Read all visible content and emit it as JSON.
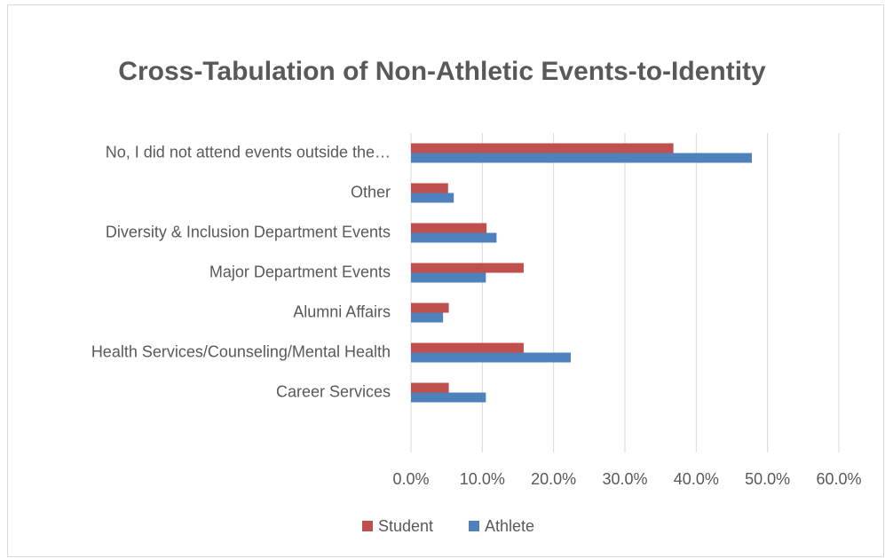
{
  "chart_data": {
    "type": "bar",
    "orientation": "horizontal",
    "title": "Cross-Tabulation of Non-Athletic Events-to-Identity",
    "categories": [
      "No, I did not attend events outside the…",
      "Other",
      "Diversity & Inclusion Department Events",
      "Major Department Events",
      "Alumni Affairs",
      "Health Services/Counseling/Mental Health",
      "Career Services"
    ],
    "series": [
      {
        "name": "Student",
        "color": "#c0504d",
        "values": [
          36.8,
          5.2,
          10.6,
          15.8,
          5.3,
          15.8,
          5.3
        ]
      },
      {
        "name": "Athlete",
        "color": "#4f81bd",
        "values": [
          47.8,
          6.0,
          12.0,
          10.5,
          4.5,
          22.4,
          10.5
        ]
      }
    ],
    "xlim": [
      0,
      60
    ],
    "xticks": [
      {
        "value": 0,
        "label": "0.0%"
      },
      {
        "value": 10,
        "label": "10.0%"
      },
      {
        "value": 20,
        "label": "20.0%"
      },
      {
        "value": 30,
        "label": "30.0%"
      },
      {
        "value": 40,
        "label": "40.0%"
      },
      {
        "value": 50,
        "label": "50.0%"
      },
      {
        "value": 60,
        "label": "60.0%"
      }
    ],
    "grid": true,
    "legend": "bottom"
  }
}
